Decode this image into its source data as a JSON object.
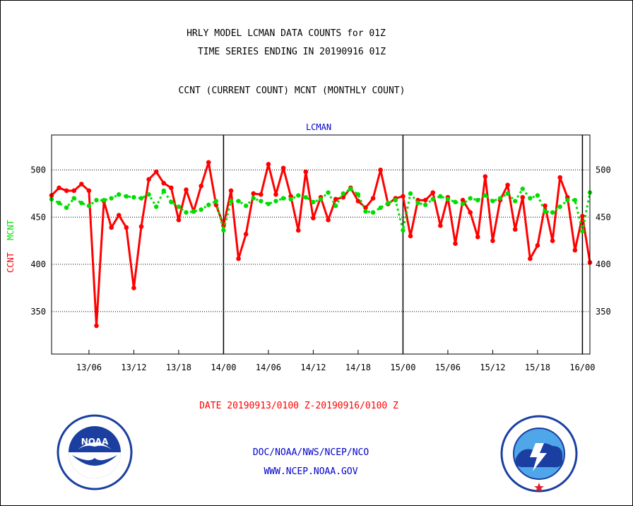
{
  "header": {
    "title_line1": "HRLY MODEL LCMAN DATA COUNTS for 01Z",
    "title_line2": "TIME SERIES ENDING IN 20190916 01Z",
    "subtitle": "CCNT (CURRENT COUNT) MCNT (MONTHLY COUNT)"
  },
  "footer": {
    "date_range": "DATE 20190913/0100 Z-20190916/0100 Z",
    "credit_line1": "DOC/NOAA/NWS/NCEP/NCO",
    "credit_line2": "WWW.NCEP.NOAA.GOV",
    "left_logo": "noaa-logo",
    "right_logo": "national-weather-service-logo"
  },
  "chart_data": {
    "type": "line",
    "title": "LCMAN",
    "ylabel": "CCNT  MCNT",
    "ylabel_parts": [
      "CCNT",
      "MCNT"
    ],
    "xlim": [
      1,
      73
    ],
    "ylim": [
      305,
      537
    ],
    "yticks": [
      350,
      400,
      450,
      500
    ],
    "xticks": [
      {
        "x": 6,
        "label": "13/06"
      },
      {
        "x": 12,
        "label": "13/12"
      },
      {
        "x": 18,
        "label": "13/18"
      },
      {
        "x": 24,
        "label": "14/00"
      },
      {
        "x": 30,
        "label": "14/06"
      },
      {
        "x": 36,
        "label": "14/12"
      },
      {
        "x": 42,
        "label": "14/18"
      },
      {
        "x": 48,
        "label": "15/00"
      },
      {
        "x": 54,
        "label": "15/06"
      },
      {
        "x": 60,
        "label": "15/12"
      },
      {
        "x": 66,
        "label": "15/18"
      },
      {
        "x": 72,
        "label": "16/00"
      }
    ],
    "day_boundaries": [
      24,
      48,
      72
    ],
    "grid": true,
    "colors": {
      "ccnt": "#ff0000",
      "mcnt": "#00dd00",
      "axis": "#000000",
      "title": "#0000cc"
    },
    "series": [
      {
        "name": "CCNT",
        "values": [
          473,
          481,
          478,
          478,
          485,
          478,
          335,
          467,
          439,
          452,
          439,
          375,
          440,
          490,
          498,
          486,
          481,
          447,
          479,
          456,
          483,
          508,
          463,
          441,
          478,
          406,
          432,
          475,
          474,
          506,
          474,
          502,
          472,
          436,
          498,
          449,
          471,
          447,
          469,
          471,
          481,
          467,
          460,
          470,
          500,
          464,
          470,
          472,
          430,
          468,
          468,
          476,
          441,
          471,
          422,
          468,
          455,
          429,
          493,
          425,
          468,
          484,
          437,
          471,
          406,
          420,
          462,
          425,
          492,
          471,
          415,
          451,
          402
        ]
      },
      {
        "name": "MCNT",
        "values": [
          469,
          465,
          460,
          470,
          465,
          462,
          468,
          468,
          470,
          474,
          472,
          471,
          470,
          474,
          461,
          478,
          466,
          461,
          455,
          456,
          458,
          463,
          467,
          436,
          467,
          467,
          462,
          470,
          467,
          464,
          467,
          470,
          469,
          473,
          471,
          466,
          469,
          476,
          462,
          475,
          480,
          474,
          456,
          455,
          460,
          465,
          468,
          436,
          475,
          465,
          463,
          469,
          472,
          469,
          466,
          464,
          470,
          468,
          473,
          467,
          470,
          475,
          467,
          480,
          470,
          473,
          456,
          455,
          461,
          468,
          468,
          435,
          476
        ]
      }
    ]
  }
}
